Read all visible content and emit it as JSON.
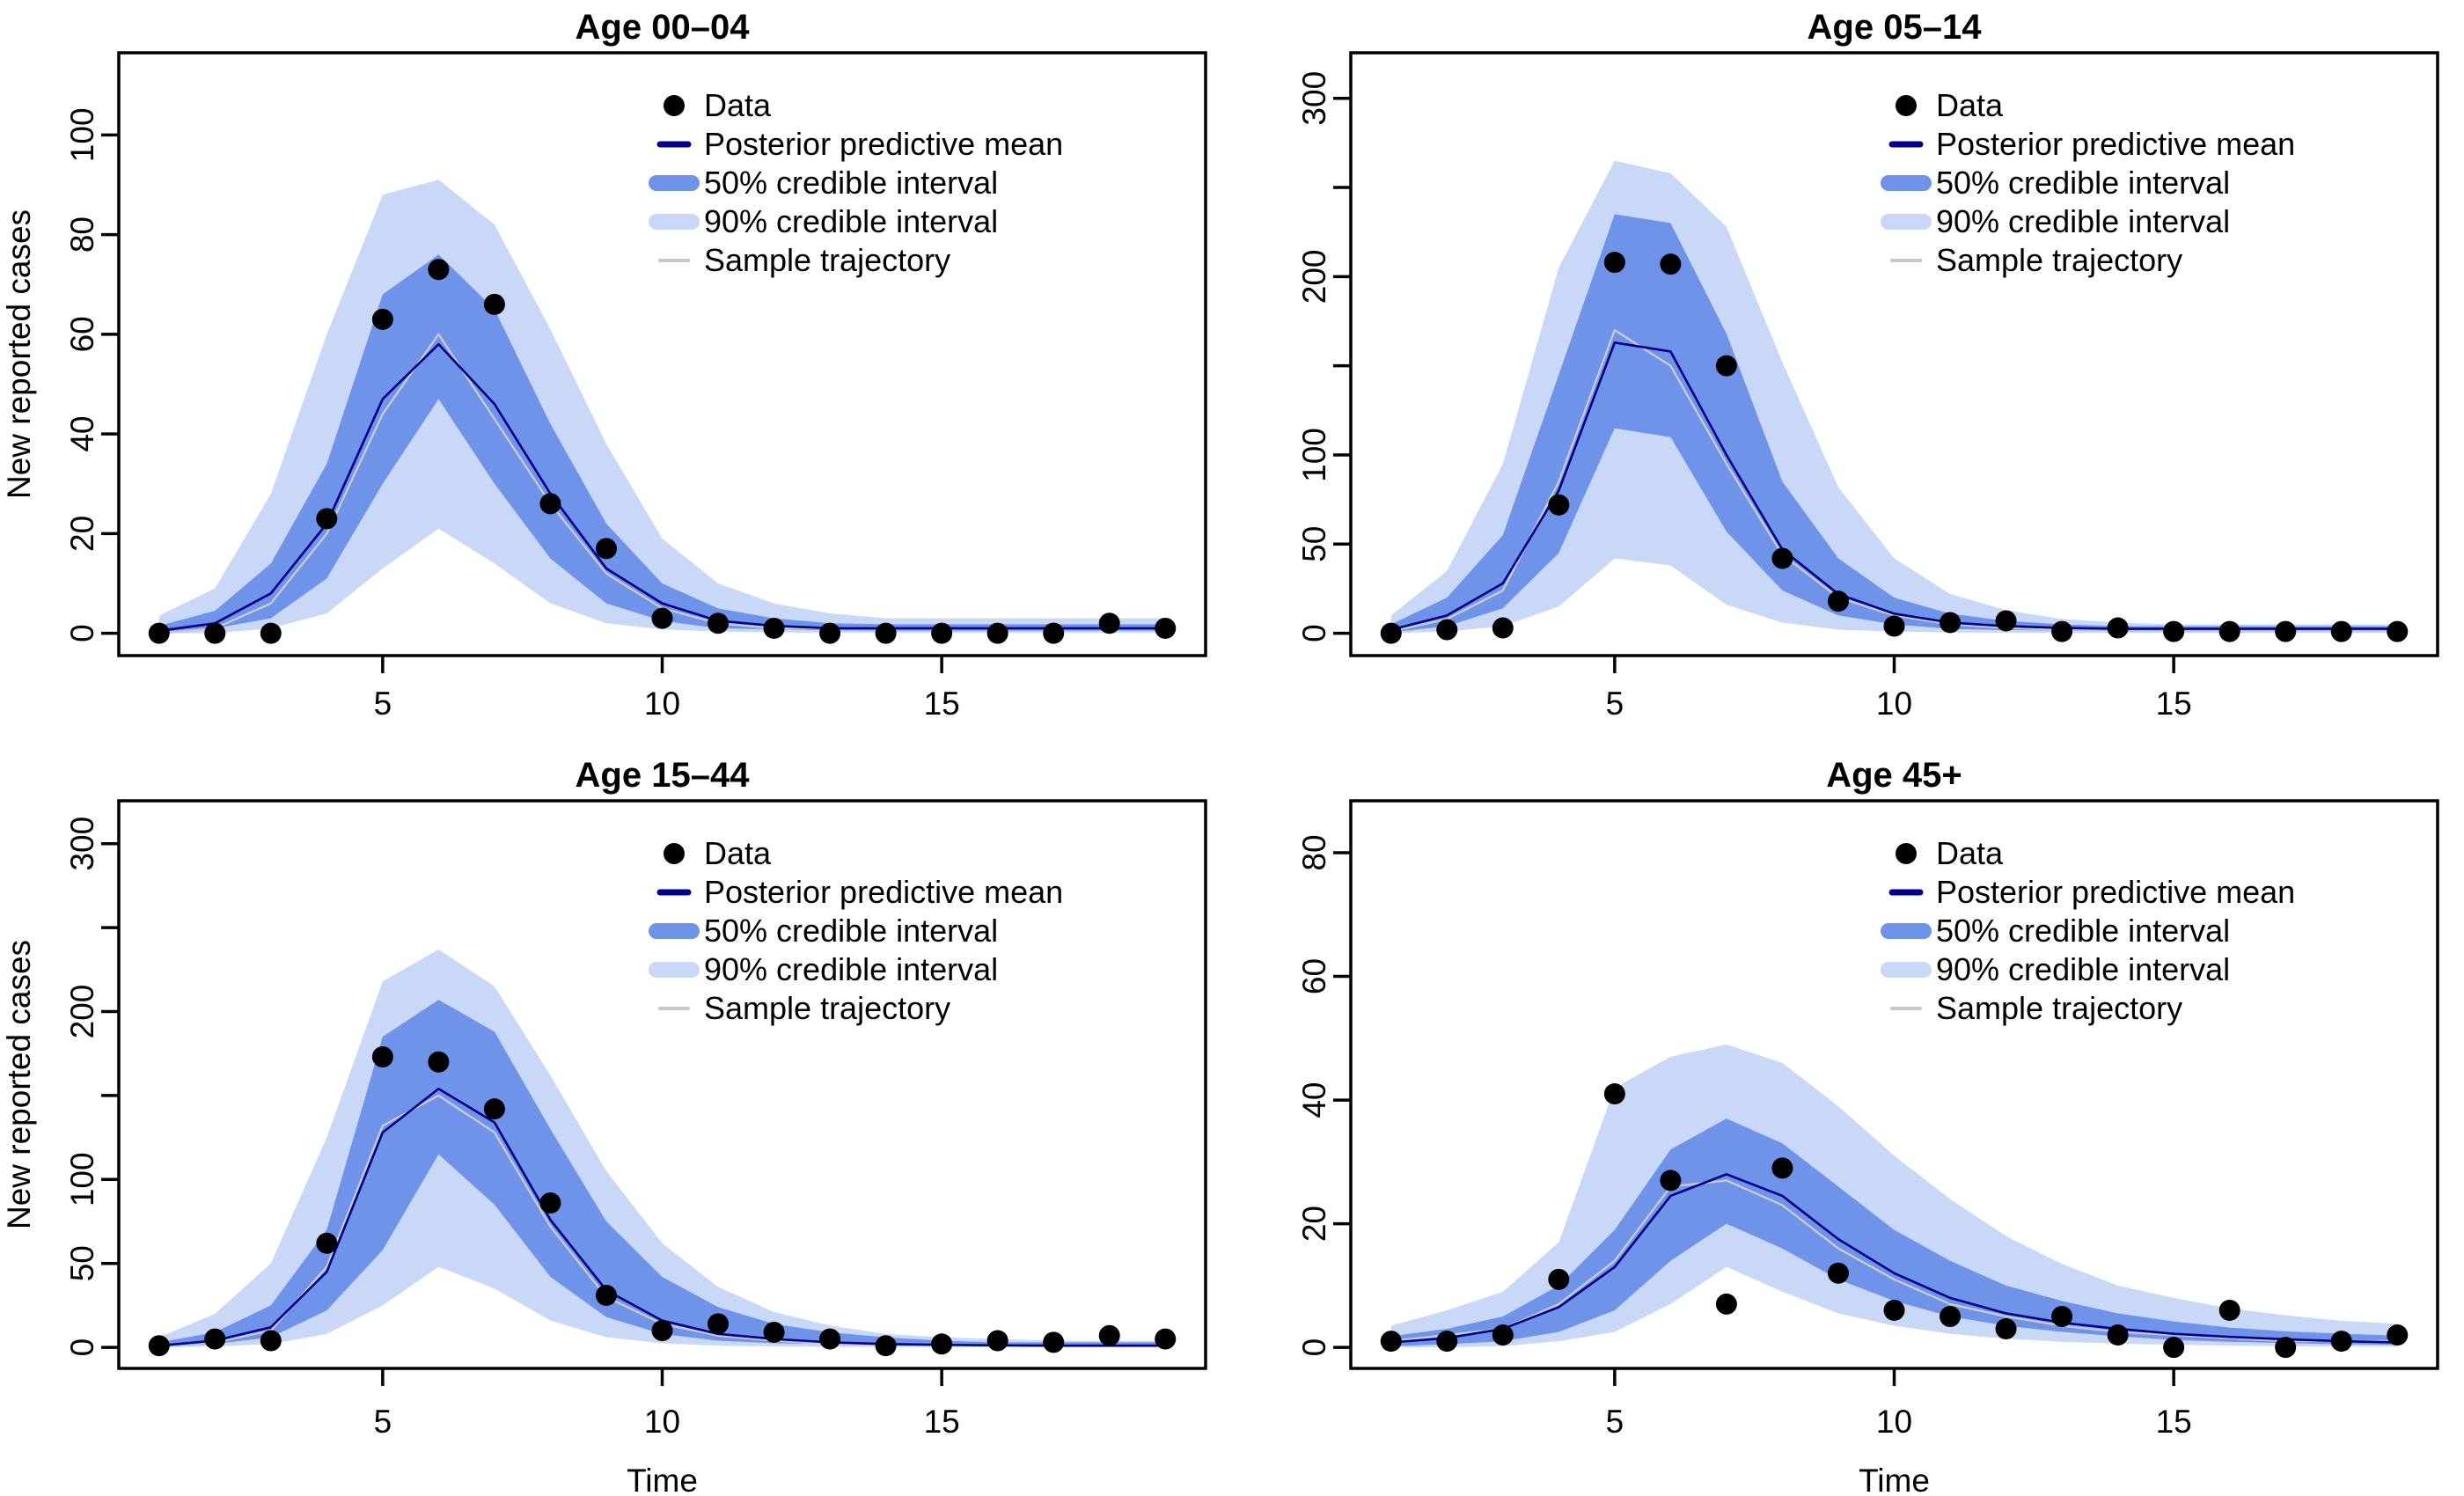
{
  "colors": {
    "background": "#ffffff",
    "band50": "#6e93e9",
    "band90": "#c9d8f6",
    "mean_line": "#00008b",
    "trajectory": "#c9c9c9",
    "data_point": "#000000",
    "axis": "#000000"
  },
  "legend": {
    "items": [
      {
        "label": "Data",
        "symbol": "dot",
        "color": "#000000"
      },
      {
        "label": "Posterior predictive mean",
        "symbol": "dash-thin",
        "color": "#00008b"
      },
      {
        "label": "50% credible interval",
        "symbol": "dash-thick",
        "color": "#6e93e9"
      },
      {
        "label": "90% credible interval",
        "symbol": "dash-thick",
        "color": "#c9d8f6"
      },
      {
        "label": "Sample trajectory",
        "symbol": "dash-hairline",
        "color": "#c9c9c9"
      }
    ]
  },
  "chart_data": [
    {
      "type": "line",
      "title": "Age 00–04",
      "ylabel": "New reported cases",
      "xlabel": "",
      "x": [
        1,
        2,
        3,
        4,
        5,
        6,
        7,
        8,
        9,
        10,
        11,
        12,
        13,
        14,
        15,
        16,
        17,
        18,
        19
      ],
      "xticks": [
        5,
        10,
        15
      ],
      "ylim": [
        0,
        112
      ],
      "yticks": [
        {
          "v": 0,
          "label": "0"
        },
        {
          "v": 20,
          "label": "20"
        },
        {
          "v": 40,
          "label": "40"
        },
        {
          "v": 60,
          "label": "60"
        },
        {
          "v": 80,
          "label": "80"
        },
        {
          "v": 100,
          "label": "100"
        }
      ],
      "series": {
        "data": [
          0,
          0,
          0,
          23,
          63,
          73,
          66,
          26,
          17,
          3,
          2,
          1,
          0,
          0,
          0,
          0,
          0,
          2,
          1
        ],
        "mean": [
          0.5,
          2,
          8,
          22,
          47,
          58,
          46,
          28,
          13,
          6,
          2.5,
          1.5,
          1,
          1,
          1,
          1,
          1,
          1,
          1
        ],
        "ci50_low": [
          0,
          1,
          3,
          11,
          30,
          47,
          30,
          15,
          6,
          2.5,
          1,
          0.8,
          0.6,
          0.5,
          0.5,
          0.5,
          0.5,
          0.5,
          0.5
        ],
        "ci50_high": [
          1.5,
          4.5,
          14,
          34,
          68,
          76,
          65,
          42,
          22,
          10,
          5,
          3,
          2,
          1.8,
          1.8,
          1.8,
          1.8,
          1.8,
          1.8
        ],
        "ci90_low": [
          0,
          0,
          1,
          4,
          13,
          21,
          14,
          6,
          2,
          0.8,
          0.3,
          0.2,
          0.1,
          0.1,
          0.1,
          0.1,
          0.1,
          0.1,
          0.1
        ],
        "ci90_high": [
          3.5,
          9,
          28,
          60,
          88,
          91,
          82,
          61,
          38,
          19,
          10,
          6,
          4,
          3,
          3,
          3,
          3,
          3,
          3
        ],
        "trajectory": [
          0,
          1,
          6,
          20,
          44,
          60,
          43,
          26,
          12,
          5,
          2,
          1,
          1,
          1,
          1,
          1,
          1,
          1,
          1
        ]
      },
      "legend_position": "top-right",
      "grid": "off"
    },
    {
      "type": "line",
      "title": "Age 05–14",
      "ylabel": "",
      "xlabel": "",
      "x": [
        1,
        2,
        3,
        4,
        5,
        6,
        7,
        8,
        9,
        10,
        11,
        12,
        13,
        14,
        15,
        16,
        17,
        18,
        19
      ],
      "xticks": [
        5,
        10,
        15
      ],
      "ylim": [
        0,
        313
      ],
      "yticks": [
        {
          "v": 0,
          "label": "0"
        },
        {
          "v": 50,
          "label": "50"
        },
        {
          "v": 100,
          "label": "100"
        },
        {
          "v": 150,
          "label": ""
        },
        {
          "v": 200,
          "label": "200"
        },
        {
          "v": 250,
          "label": ""
        },
        {
          "v": 300,
          "label": "300"
        }
      ],
      "series": {
        "data": [
          0,
          2,
          3,
          72,
          208,
          207,
          150,
          42,
          18,
          4,
          6,
          7,
          1,
          3,
          1,
          1,
          1,
          1,
          1
        ],
        "mean": [
          2,
          10,
          28,
          80,
          163,
          158,
          100,
          47,
          22,
          11,
          6,
          4,
          3,
          2.5,
          2.5,
          2.5,
          2.5,
          2.5,
          2.5
        ],
        "ci50_low": [
          0.5,
          4,
          14,
          45,
          115,
          110,
          57,
          24,
          10,
          5,
          2.5,
          1.8,
          1.5,
          1.2,
          1.2,
          1.2,
          1.2,
          1.2,
          1.2
        ],
        "ci50_high": [
          5,
          20,
          55,
          145,
          235,
          230,
          168,
          85,
          42,
          20,
          11,
          7,
          5,
          4,
          4,
          4,
          4,
          4,
          4
        ],
        "ci90_low": [
          0,
          1,
          4,
          15,
          42,
          38,
          16,
          6,
          2,
          1,
          0.5,
          0.3,
          0.2,
          0.2,
          0.2,
          0.2,
          0.2,
          0.2,
          0.2
        ],
        "ci90_high": [
          10,
          35,
          95,
          205,
          265,
          258,
          228,
          152,
          82,
          42,
          22,
          13,
          8,
          6,
          5,
          5,
          5,
          5,
          5
        ],
        "trajectory": [
          1,
          8,
          24,
          85,
          170,
          150,
          95,
          44,
          20,
          10,
          5,
          3,
          2,
          2,
          2,
          2,
          2,
          2,
          2
        ]
      },
      "legend_position": "top-right",
      "grid": "off"
    },
    {
      "type": "line",
      "title": "Age 15–44",
      "ylabel": "New reported cases",
      "xlabel": "Time",
      "x": [
        1,
        2,
        3,
        4,
        5,
        6,
        7,
        8,
        9,
        10,
        11,
        12,
        13,
        14,
        15,
        16,
        17,
        18,
        19
      ],
      "xticks": [
        5,
        10,
        15
      ],
      "ylim": [
        0,
        313
      ],
      "yticks": [
        {
          "v": 0,
          "label": "0"
        },
        {
          "v": 50,
          "label": "50"
        },
        {
          "v": 100,
          "label": "100"
        },
        {
          "v": 150,
          "label": ""
        },
        {
          "v": 200,
          "label": "200"
        },
        {
          "v": 250,
          "label": ""
        },
        {
          "v": 300,
          "label": "300"
        }
      ],
      "series": {
        "data": [
          1,
          5,
          4,
          62,
          173,
          170,
          142,
          86,
          31,
          10,
          14,
          9,
          5,
          1,
          2,
          4,
          3,
          7,
          5
        ],
        "mean": [
          1,
          4,
          12,
          45,
          128,
          154,
          134,
          76,
          34,
          16,
          8,
          5,
          3,
          2,
          1.5,
          1.2,
          1,
          1,
          1
        ],
        "ci50_low": [
          0.3,
          2,
          6,
          22,
          58,
          115,
          85,
          42,
          18,
          8,
          4,
          2.5,
          1.8,
          1.2,
          1,
          1,
          1,
          1,
          1
        ],
        "ci50_high": [
          3,
          9,
          25,
          70,
          185,
          207,
          188,
          130,
          75,
          42,
          24,
          14,
          9,
          6,
          4,
          3,
          3,
          3,
          3
        ],
        "ci90_low": [
          0,
          0.5,
          2,
          8,
          25,
          48,
          35,
          16,
          6,
          2.5,
          1,
          0.5,
          0.3,
          0.2,
          0.2,
          0.2,
          0.2,
          0.2,
          0.2
        ],
        "ci90_high": [
          6,
          20,
          50,
          125,
          218,
          237,
          215,
          162,
          105,
          62,
          36,
          21,
          13,
          8,
          6,
          5,
          4,
          4,
          4
        ],
        "trajectory": [
          1,
          3,
          10,
          48,
          132,
          150,
          128,
          72,
          30,
          14,
          7,
          4,
          2,
          1.5,
          1,
          1,
          1,
          1,
          1
        ]
      },
      "legend_position": "top-right",
      "grid": "off"
    },
    {
      "type": "line",
      "title": "Age 45+",
      "ylabel": "",
      "xlabel": "Time",
      "x": [
        1,
        2,
        3,
        4,
        5,
        6,
        7,
        8,
        9,
        10,
        11,
        12,
        13,
        14,
        15,
        16,
        17,
        18,
        19
      ],
      "xticks": [
        5,
        10,
        15
      ],
      "ylim": [
        0,
        85
      ],
      "yticks": [
        {
          "v": 0,
          "label": "0"
        },
        {
          "v": 20,
          "label": "20"
        },
        {
          "v": 40,
          "label": "40"
        },
        {
          "v": 60,
          "label": "60"
        },
        {
          "v": 80,
          "label": "80"
        }
      ],
      "series": {
        "data": [
          1,
          1,
          2,
          11,
          41,
          27,
          7,
          29,
          12,
          6,
          5,
          3,
          5,
          2,
          0,
          6,
          0,
          1,
          2
        ],
        "mean": [
          0.8,
          1.5,
          3,
          6.5,
          13,
          24.5,
          28,
          24.5,
          17.5,
          12,
          8,
          5.5,
          4,
          3,
          2.2,
          1.7,
          1.3,
          1,
          0.8
        ],
        "ci50_low": [
          0.2,
          0.5,
          1,
          2.5,
          6,
          14,
          20,
          16,
          11,
          7.5,
          5,
          3.5,
          2.5,
          1.8,
          1.2,
          0.9,
          0.7,
          0.5,
          0.4
        ],
        "ci50_high": [
          1.8,
          3,
          5,
          10,
          19,
          32,
          37,
          33,
          26,
          19,
          14,
          10,
          7.5,
          5.5,
          4.2,
          3.2,
          2.6,
          2.2,
          1.9
        ],
        "ci90_low": [
          0,
          0,
          0.2,
          1,
          2.5,
          7,
          13,
          9,
          5.5,
          3.5,
          2.2,
          1.4,
          0.9,
          0.6,
          0.4,
          0.3,
          0.2,
          0.1,
          0.1
        ],
        "ci90_high": [
          3.5,
          6,
          9,
          17,
          42,
          47,
          49,
          46,
          39,
          31,
          24,
          18,
          13.5,
          10,
          8,
          6.3,
          5.2,
          4.3,
          3.8
        ],
        "trajectory": [
          1,
          2,
          3,
          7,
          14,
          26,
          27,
          23,
          16,
          11,
          7,
          5,
          3.5,
          2.5,
          2,
          1.5,
          1,
          1,
          1
        ]
      },
      "legend_position": "top-right",
      "grid": "off"
    }
  ]
}
